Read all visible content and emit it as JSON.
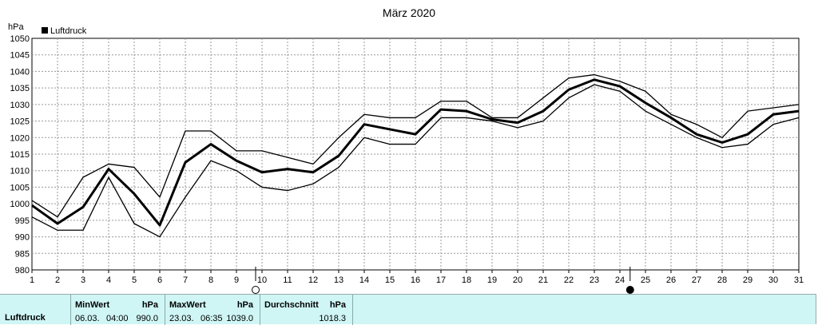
{
  "chart_data": {
    "type": "line",
    "title": "März 2020",
    "ylabel": "hPa",
    "legend": [
      "Luftdruck"
    ],
    "ylim": [
      980,
      1050
    ],
    "y_ticks": [
      980,
      985,
      990,
      995,
      1000,
      1005,
      1010,
      1015,
      1020,
      1025,
      1030,
      1035,
      1040,
      1045,
      1050
    ],
    "x": [
      1,
      2,
      3,
      4,
      5,
      6,
      7,
      8,
      9,
      10,
      11,
      12,
      13,
      14,
      15,
      16,
      17,
      18,
      19,
      20,
      21,
      22,
      23,
      24,
      25,
      26,
      27,
      28,
      29,
      30,
      31
    ],
    "grid": true,
    "series": [
      {
        "role": "max",
        "values": [
          1001,
          996,
          1008,
          1012,
          1011,
          1002,
          1022,
          1022,
          1016,
          1016,
          1014,
          1012,
          1020,
          1027,
          1026,
          1026,
          1031,
          1031,
          1026,
          1026,
          1032,
          1038,
          1039,
          1037,
          1034,
          1027,
          1024,
          1020,
          1028,
          1029,
          1030
        ]
      },
      {
        "name": "Luftdruck",
        "role": "avg",
        "values": [
          999.5,
          994,
          999,
          1010.5,
          1003,
          993.5,
          1012.5,
          1018,
          1013,
          1009.5,
          1010.5,
          1009.5,
          1014.5,
          1024,
          1022.5,
          1021,
          1028.5,
          1028,
          1025.5,
          1024.5,
          1028,
          1034.5,
          1037.5,
          1035.5,
          1030.5,
          1026,
          1021,
          1018.5,
          1021,
          1027,
          1028
        ]
      },
      {
        "role": "min",
        "values": [
          996,
          992,
          992,
          1008,
          994,
          990,
          1002,
          1013,
          1010,
          1005,
          1004,
          1006,
          1011,
          1020,
          1018,
          1018,
          1026,
          1026,
          1025,
          1023,
          1025,
          1032,
          1036,
          1034,
          1028,
          1024,
          1020,
          1017,
          1018,
          1024,
          1026
        ]
      }
    ],
    "moon_phases": [
      {
        "day": 9.75,
        "phase": "full-moon"
      },
      {
        "day": 24.4,
        "phase": "new-moon"
      }
    ]
  },
  "colors": {
    "line": "#000000",
    "grid": "#9a9a9a",
    "panel_bg": "#cff5f5"
  },
  "stats": {
    "row_label": "Luftdruck",
    "min": {
      "label": "MinWert",
      "unit": "hPa",
      "date": "06.03.",
      "time": "04:00",
      "value": "990.0"
    },
    "max": {
      "label": "MaxWert",
      "unit": "hPa",
      "date": "23.03.",
      "time": "06:35",
      "value": "1039.0"
    },
    "avg": {
      "label": "Durchschnitt",
      "unit": "hPa",
      "value": "1018.3"
    }
  }
}
